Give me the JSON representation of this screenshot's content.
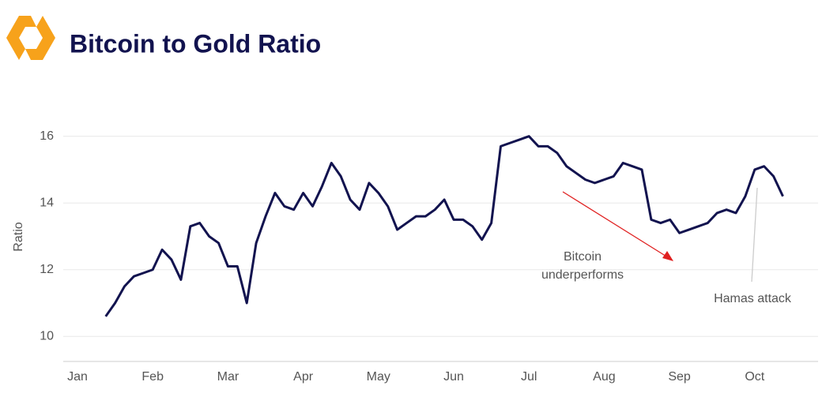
{
  "chart_data": {
    "type": "line",
    "title": "Bitcoin to Gold Ratio",
    "ylabel": "Ratio",
    "categories": [
      "Jan",
      null,
      null,
      null,
      null,
      null,
      null,
      null,
      "Feb",
      null,
      null,
      null,
      null,
      null,
      null,
      null,
      "Mar",
      null,
      null,
      null,
      null,
      null,
      null,
      null,
      "Apr",
      null,
      null,
      null,
      null,
      null,
      null,
      null,
      "May",
      null,
      null,
      null,
      null,
      null,
      null,
      null,
      "Jun",
      null,
      null,
      null,
      null,
      null,
      null,
      null,
      "Jul",
      null,
      null,
      null,
      null,
      null,
      null,
      null,
      "Aug",
      null,
      null,
      null,
      null,
      null,
      null,
      null,
      "Sep",
      null,
      null,
      null,
      null,
      null,
      null,
      null,
      "Oct",
      null,
      null,
      null
    ],
    "values": [
      null,
      null,
      null,
      10.6,
      11.0,
      11.5,
      11.8,
      11.9,
      12.0,
      12.6,
      12.3,
      11.7,
      13.3,
      13.4,
      13.0,
      12.8,
      12.1,
      12.1,
      11.0,
      12.8,
      13.6,
      14.3,
      13.9,
      13.8,
      14.3,
      13.9,
      14.5,
      15.2,
      14.8,
      14.1,
      13.8,
      14.6,
      14.3,
      13.9,
      13.2,
      13.4,
      13.6,
      13.6,
      13.8,
      14.1,
      13.5,
      13.5,
      13.3,
      12.9,
      13.4,
      15.7,
      15.8,
      15.9,
      16.0,
      15.7,
      15.7,
      15.5,
      15.1,
      14.9,
      14.7,
      14.6,
      14.7,
      14.8,
      15.2,
      15.1,
      15.0,
      13.5,
      13.4,
      13.5,
      13.1,
      13.2,
      13.3,
      13.4,
      13.7,
      13.8,
      13.7,
      14.2,
      15.0,
      15.1,
      14.8,
      14.2
    ],
    "color": "#12134f",
    "ylim": [
      9.25,
      16.3
    ],
    "yticks": [
      10,
      12,
      14,
      16
    ],
    "grid": true,
    "annotations": [
      {
        "lines": [
          "Bitcoin",
          "underperforms"
        ],
        "color": "#e02020"
      },
      {
        "lines": [
          "Hamas attack"
        ],
        "color": "#cccccc"
      }
    ]
  }
}
